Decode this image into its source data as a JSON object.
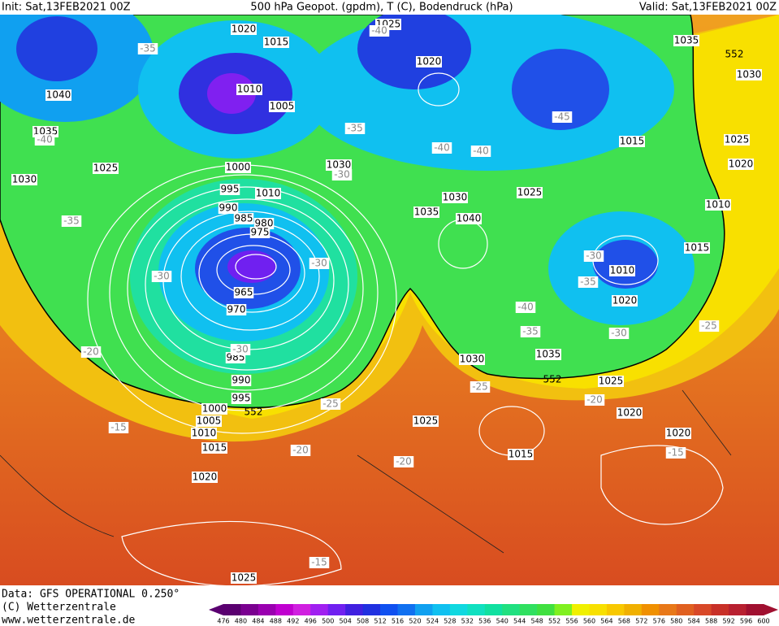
{
  "header": {
    "init": "Init: Sat,13FEB2021 00Z",
    "title": "500 hPa Geopot. (gpdm), T (C), Bodendruck (hPa)",
    "valid": "Valid: Sat,13FEB2021 00Z"
  },
  "footer": {
    "source": "Data: GFS OPERATIONAL 0.250°",
    "copyright": "(C) Wetterzentrale",
    "url": "www.wetterzentrale.de"
  },
  "isobar_labels": [
    "1020",
    "1015",
    "1025",
    "1020",
    "1035",
    "1030",
    "1040",
    "1010",
    "1005",
    "1035",
    "1030",
    "1025",
    "1000",
    "1030",
    "995",
    "1010",
    "990",
    "985",
    "980",
    "975",
    "1030",
    "1025",
    "1035",
    "1040",
    "1015",
    "1025",
    "1020",
    "1010",
    "1015",
    "1010",
    "1020",
    "965",
    "970",
    "985",
    "990",
    "995",
    "1000",
    "1005",
    "1010",
    "1015",
    "1030",
    "1035",
    "1025",
    "1020",
    "1025",
    "1020",
    "1015",
    "1020",
    "1025"
  ],
  "temperature_labels": [
    "-40",
    "-35",
    "-40",
    "-45",
    "-35",
    "-40",
    "-40",
    "-30",
    "-35",
    "-30",
    "-30",
    "-30",
    "-35",
    "-40",
    "-35",
    "-30",
    "-25",
    "-30",
    "-20",
    "-25",
    "-25",
    "-20",
    "-15",
    "-20",
    "-20",
    "-15",
    "-15"
  ],
  "height_labels": [
    "552",
    "552",
    "552"
  ],
  "colorbar": {
    "ticks": [
      476,
      480,
      484,
      488,
      492,
      496,
      500,
      504,
      508,
      512,
      516,
      520,
      524,
      528,
      532,
      536,
      540,
      544,
      548,
      552,
      556,
      560,
      564,
      568,
      572,
      576,
      580,
      584,
      588,
      592,
      596,
      600
    ],
    "colors": [
      "#5a0070",
      "#7a0090",
      "#9a00b0",
      "#c000d0",
      "#d020e0",
      "#a020f0",
      "#7020f0",
      "#4020e0",
      "#2030e0",
      "#1050f0",
      "#1070f0",
      "#10a0f0",
      "#10c0f0",
      "#10d8e0",
      "#10e0c0",
      "#10e0a0",
      "#20e080",
      "#30e060",
      "#40e040",
      "#80f020",
      "#f0f000",
      "#f8e000",
      "#f8c800",
      "#f0b000",
      "#f09000",
      "#e87818",
      "#e06020",
      "#d84828",
      "#c83028",
      "#b82030",
      "#a01030"
    ]
  }
}
